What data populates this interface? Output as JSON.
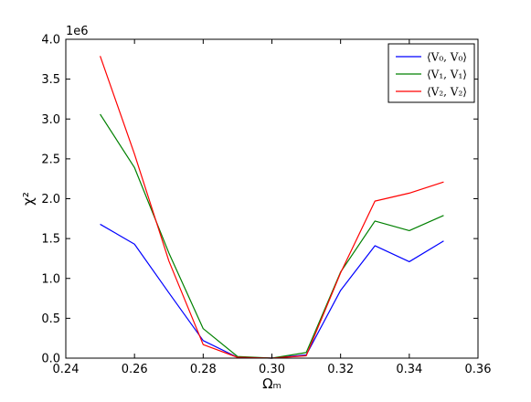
{
  "chart_data": {
    "type": "line",
    "title": "",
    "xlabel": "Ωₘ",
    "ylabel": "χ²",
    "y_offset_text": "1e6",
    "xlim": [
      0.24,
      0.36
    ],
    "ylim": [
      0.0,
      4.0
    ],
    "xticks": [
      "0.24",
      "0.26",
      "0.28",
      "0.30",
      "0.32",
      "0.34",
      "0.36"
    ],
    "yticks": [
      "0.0",
      "0.5",
      "1.0",
      "1.5",
      "2.0",
      "2.5",
      "3.0",
      "3.5",
      "4.0"
    ],
    "grid": false,
    "legend_position": "top-right",
    "x": [
      0.25,
      0.26,
      0.27,
      0.28,
      0.29,
      0.3,
      0.31,
      0.32,
      0.33,
      0.34,
      0.35
    ],
    "series": [
      {
        "name": "⟨V₀, V₀⟩",
        "color": "#0000ff",
        "values": [
          1.68,
          1.43,
          0.82,
          0.22,
          0.01,
          0.0,
          0.04,
          0.85,
          1.41,
          1.21,
          1.47
        ]
      },
      {
        "name": "⟨V₁, V₁⟩",
        "color": "#008000",
        "values": [
          3.06,
          2.39,
          1.32,
          0.37,
          0.02,
          0.0,
          0.07,
          1.08,
          1.72,
          1.6,
          1.79
        ]
      },
      {
        "name": "⟨V₂, V₂⟩",
        "color": "#ff0000",
        "values": [
          3.79,
          2.56,
          1.22,
          0.17,
          0.01,
          0.0,
          0.03,
          1.07,
          1.97,
          2.07,
          2.21
        ]
      }
    ]
  }
}
